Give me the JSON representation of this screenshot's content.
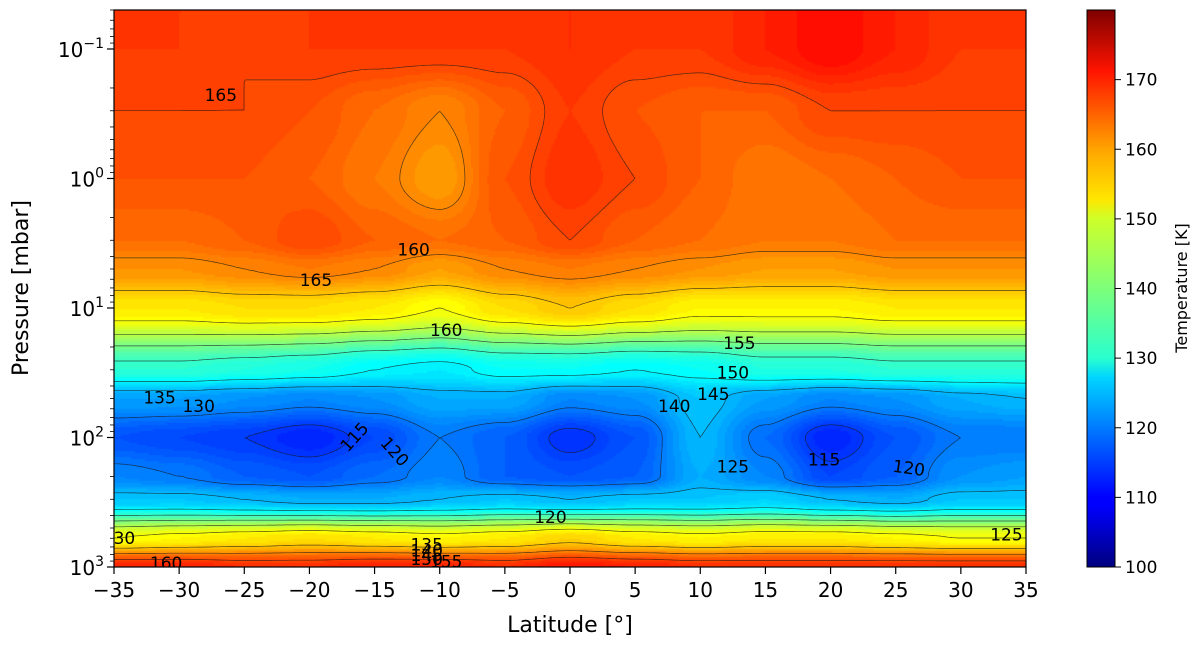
{
  "chart_data": {
    "type": "heatmap",
    "subtype": "filled-contour",
    "title": "",
    "xlabel": "Latitude [°]",
    "ylabel": "Pressure [mbar]",
    "xlim": [
      -35,
      35
    ],
    "ylim_mbar": [
      1000,
      0.05
    ],
    "yscale": "log",
    "x_ticks": [
      -35,
      -30,
      -25,
      -20,
      -15,
      -10,
      -5,
      0,
      5,
      10,
      15,
      20,
      25,
      30,
      35
    ],
    "x_tick_labels": [
      "−35",
      "−30",
      "−25",
      "−20",
      "−15",
      "−10",
      "−5",
      "0",
      "5",
      "10",
      "15",
      "20",
      "25",
      "30",
      "35"
    ],
    "y_ticks_mbar": [
      0.1,
      1,
      10,
      100,
      1000
    ],
    "y_tick_labels": [
      {
        "base": "10",
        "exp": "−1"
      },
      {
        "base": "10",
        "exp": "0"
      },
      {
        "base": "10",
        "exp": "1"
      },
      {
        "base": "10",
        "exp": "2"
      },
      {
        "base": "10",
        "exp": "3"
      }
    ],
    "colorbar": {
      "label": "Temperature [K]",
      "range": [
        100,
        180
      ],
      "ticks": [
        100,
        110,
        120,
        130,
        140,
        150,
        160,
        170
      ],
      "colormap": "jet"
    },
    "grid": false,
    "legend": "none",
    "profile_latitudes": [
      -35,
      -30,
      -25,
      -20,
      -15,
      -10,
      -5,
      0,
      5,
      10,
      15,
      20,
      25,
      30,
      35
    ],
    "profile_pressures_mbar": [
      1000,
      600,
      300,
      200,
      100,
      50,
      30,
      10,
      5,
      3,
      1,
      0.3,
      0.1,
      0.05
    ],
    "temperature_K": [
      [
        168,
        168,
        167,
        167,
        168,
        168,
        167,
        169,
        168,
        167,
        167,
        167,
        167,
        167,
        167
      ],
      [
        150,
        151,
        152,
        153,
        152,
        151,
        152,
        154,
        152,
        151,
        152,
        152,
        151,
        150,
        150
      ],
      [
        126,
        126,
        125,
        124,
        124,
        125,
        126,
        125,
        126,
        126,
        127,
        125,
        124,
        126,
        126
      ],
      [
        121,
        120,
        118,
        117,
        119,
        121,
        118,
        117,
        118,
        124,
        121,
        116,
        118,
        122,
        123
      ],
      [
        117,
        116,
        115,
        113,
        116,
        120,
        118,
        114,
        117,
        125,
        119,
        113,
        117,
        120,
        120
      ],
      [
        123,
        123,
        122,
        121,
        122,
        124,
        124,
        121,
        122,
        126,
        123,
        121,
        122,
        124,
        125
      ],
      [
        134,
        134,
        133,
        132,
        130,
        129,
        131,
        131,
        130,
        131,
        133,
        133,
        134,
        134,
        134
      ],
      [
        152,
        152,
        153,
        153,
        152,
        150,
        153,
        155,
        153,
        151,
        151,
        151,
        152,
        152,
        152
      ],
      [
        159,
        159,
        160,
        161,
        160,
        158,
        160,
        161,
        160,
        159,
        158,
        158,
        159,
        159,
        159
      ],
      [
        162,
        162,
        163,
        165,
        163,
        162,
        163,
        165,
        163,
        162,
        161,
        161,
        162,
        162,
        162
      ],
      [
        164,
        164,
        164,
        163,
        161,
        158,
        164,
        167,
        165,
        163,
        161,
        162,
        163,
        164,
        164
      ],
      [
        165,
        165,
        165,
        164,
        162,
        160,
        163,
        166,
        164,
        163,
        163,
        165,
        165,
        165,
        165
      ],
      [
        166,
        166,
        165,
        166,
        166,
        166,
        166,
        167,
        166,
        166,
        168,
        170,
        168,
        166,
        166
      ],
      [
        166,
        166,
        166,
        166,
        166,
        166,
        166,
        167,
        166,
        166,
        168,
        170,
        168,
        166,
        166
      ]
    ],
    "contour_labels": [
      {
        "text": "165",
        "lat": -26.8,
        "p": 0.23,
        "angle": 0
      },
      {
        "text": "160",
        "lat": -12.0,
        "p": 3.6,
        "angle": 0
      },
      {
        "text": "165",
        "lat": -19.5,
        "p": 6.2,
        "angle": 0
      },
      {
        "text": "160",
        "lat": -9.5,
        "p": 15,
        "angle": 0
      },
      {
        "text": "155",
        "lat": 13.0,
        "p": 19,
        "angle": 0
      },
      {
        "text": "150",
        "lat": 12.5,
        "p": 32,
        "angle": 0
      },
      {
        "text": "145",
        "lat": 11.0,
        "p": 47,
        "angle": 0
      },
      {
        "text": "140",
        "lat": 8.0,
        "p": 58,
        "angle": 0
      },
      {
        "text": "135",
        "lat": -31.5,
        "p": 50,
        "angle": 0
      },
      {
        "text": "130",
        "lat": -28.5,
        "p": 58,
        "angle": 0
      },
      {
        "text": "125",
        "lat": 12.5,
        "p": 170,
        "angle": 0
      },
      {
        "text": "115",
        "lat": -16.5,
        "p": 100,
        "angle": -48
      },
      {
        "text": "120",
        "lat": -13.5,
        "p": 130,
        "angle": 48
      },
      {
        "text": "115",
        "lat": 19.5,
        "p": 150,
        "angle": 0
      },
      {
        "text": "120",
        "lat": 26.0,
        "p": 175,
        "angle": 8
      },
      {
        "text": "120",
        "lat": -1.5,
        "p": 420,
        "angle": 0
      },
      {
        "text": "125",
        "lat": 33.5,
        "p": 570,
        "angle": 0
      },
      {
        "text": "30",
        "lat": -34.2,
        "p": 610,
        "angle": 0
      },
      {
        "text": "135",
        "lat": -11.0,
        "p": 680,
        "angle": 0
      },
      {
        "text": "140",
        "lat": -11.0,
        "p": 760,
        "angle": 0
      },
      {
        "text": "145",
        "lat": -11.0,
        "p": 820,
        "angle": 0
      },
      {
        "text": "150",
        "lat": -11.0,
        "p": 880,
        "angle": 0
      },
      {
        "text": "155",
        "lat": -9.5,
        "p": 920,
        "angle": 0
      },
      {
        "text": "160",
        "lat": -31.0,
        "p": 950,
        "angle": 0
      }
    ]
  }
}
